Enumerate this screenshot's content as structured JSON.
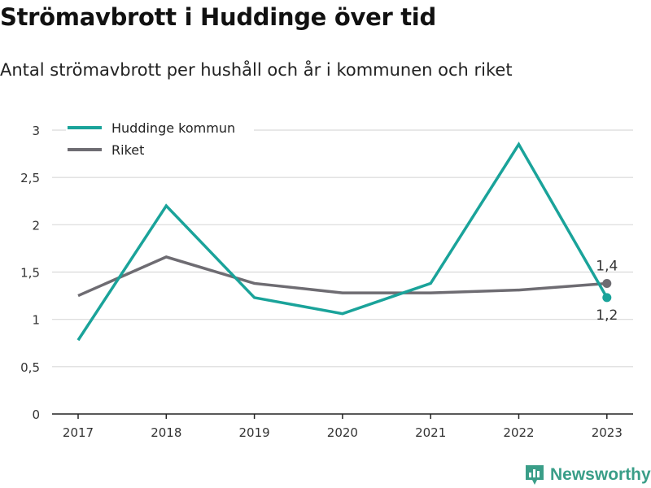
{
  "title": "Strömavbrott i Huddinge över tid",
  "subtitle": "Antal strömavbrott per hushåll och år i kommunen och riket",
  "brand": {
    "name": "Newsworthy",
    "icon": "newsworthy-logo-icon"
  },
  "colors": {
    "huddinge": "#1aa39a",
    "riket": "#6e6c72",
    "grid": "#d9d9d9",
    "axis": "#222222",
    "brand": "#3a9e88"
  },
  "chart_data": {
    "type": "line",
    "x": [
      2017,
      2018,
      2019,
      2020,
      2021,
      2022,
      2023
    ],
    "x_tick_labels": [
      "2017",
      "2018",
      "2019",
      "2020",
      "2021",
      "2022",
      "2023"
    ],
    "y_tick_labels": [
      "0",
      "0,5",
      "1",
      "1,5",
      "2",
      "2,5",
      "3"
    ],
    "ylim": [
      0,
      3
    ],
    "grid": true,
    "legend_position": "top-left",
    "series": [
      {
        "name": "Huddinge kommun",
        "color": "#1aa39a",
        "values": [
          0.78,
          2.2,
          1.23,
          1.06,
          1.38,
          2.85,
          1.23
        ],
        "end_label": "1,2"
      },
      {
        "name": "Riket",
        "color": "#6e6c72",
        "values": [
          1.25,
          1.66,
          1.38,
          1.28,
          1.28,
          1.31,
          1.38
        ],
        "end_label": "1,4"
      }
    ]
  }
}
